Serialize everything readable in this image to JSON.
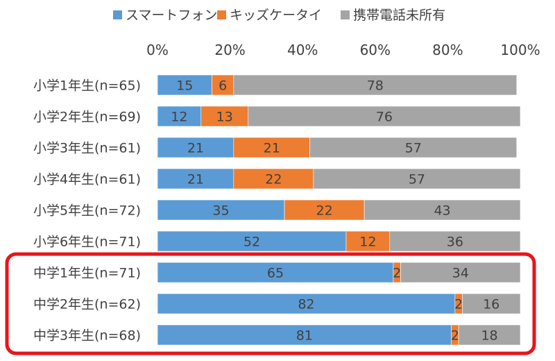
{
  "chart_data": {
    "type": "bar",
    "orientation": "horizontal",
    "stacked": true,
    "categories": [
      "小学1年生(n=65)",
      "小学2年生(n=69)",
      "小学3年生(n=61)",
      "小学4年生(n=61)",
      "小学5年生(n=72)",
      "小学6年生(n=71)",
      "中学1年生(n=71)",
      "中学2年生(n=62)",
      "中学3年生(n=68)"
    ],
    "series": [
      {
        "name": "スマートフォン",
        "color": "#5B9BD5",
        "values": [
          15,
          12,
          21,
          21,
          35,
          52,
          65,
          82,
          81
        ]
      },
      {
        "name": "キッズケータイ",
        "color": "#ED7D31",
        "values": [
          6,
          13,
          21,
          22,
          22,
          12,
          2,
          2,
          2
        ]
      },
      {
        "name": "携帯電話未所有",
        "color": "#A5A5A5",
        "values": [
          78,
          76,
          57,
          57,
          43,
          36,
          34,
          16,
          18
        ]
      }
    ],
    "xlim": [
      0,
      100
    ],
    "x_ticks": [
      "0%",
      "20%",
      "40%",
      "60%",
      "80%",
      "100%"
    ],
    "legend_position": "top",
    "grid": false,
    "highlight": {
      "color": "#E8141B",
      "categories": [
        "中学1年生(n=71)",
        "中学2年生(n=62)",
        "中学3年生(n=68)"
      ]
    }
  }
}
